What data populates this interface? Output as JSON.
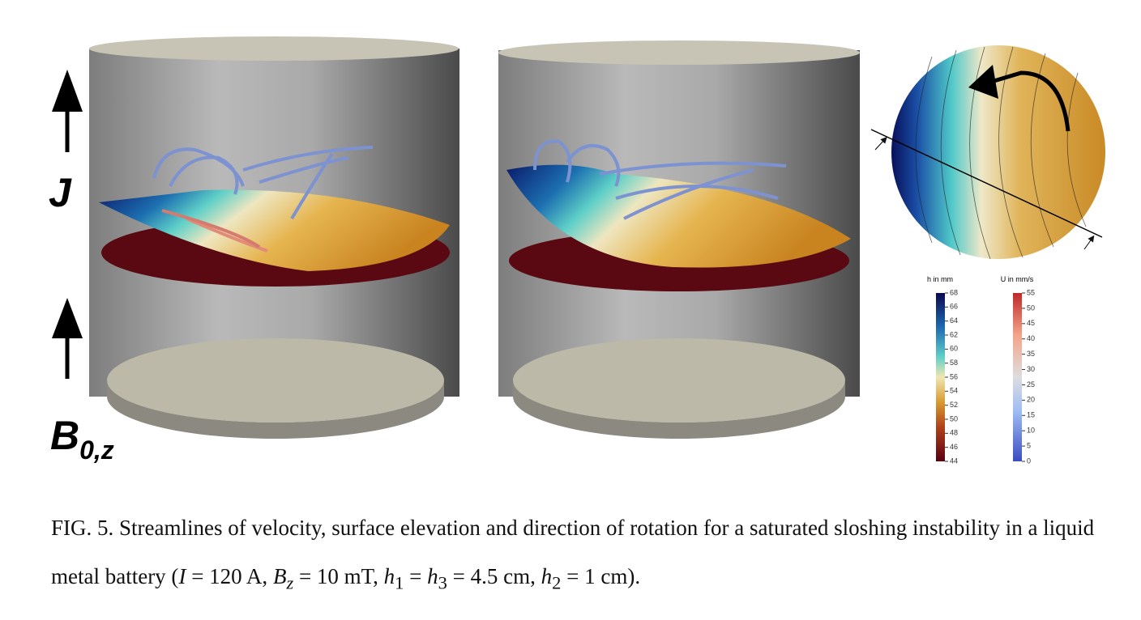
{
  "labels": {
    "current": "J",
    "field": "B",
    "field_sub": "0,z"
  },
  "colorbars": [
    {
      "title": "h in mm",
      "lim": [
        44,
        68
      ],
      "ticks": [
        68,
        66,
        64,
        62,
        60,
        58,
        56,
        54,
        52,
        50,
        48,
        46,
        44
      ]
    },
    {
      "title": "U in mm/s",
      "lim": [
        0,
        55
      ],
      "ticks": [
        55,
        50,
        45,
        40,
        35,
        30,
        25,
        20,
        15,
        10,
        5,
        0
      ]
    }
  ],
  "caption": [
    "FIG. 5. Streamlines of velocity, surface elevation and direction of rotation for a saturated sloshing instability in a liquid metal battery (",
    "I",
    " = 120 A, ",
    "B",
    "z",
    " = 10 mT, ",
    "h",
    "1",
    " = ",
    "h",
    "3",
    " = 4.5 cm, ",
    "h",
    "2",
    " = 1 cm)."
  ]
}
